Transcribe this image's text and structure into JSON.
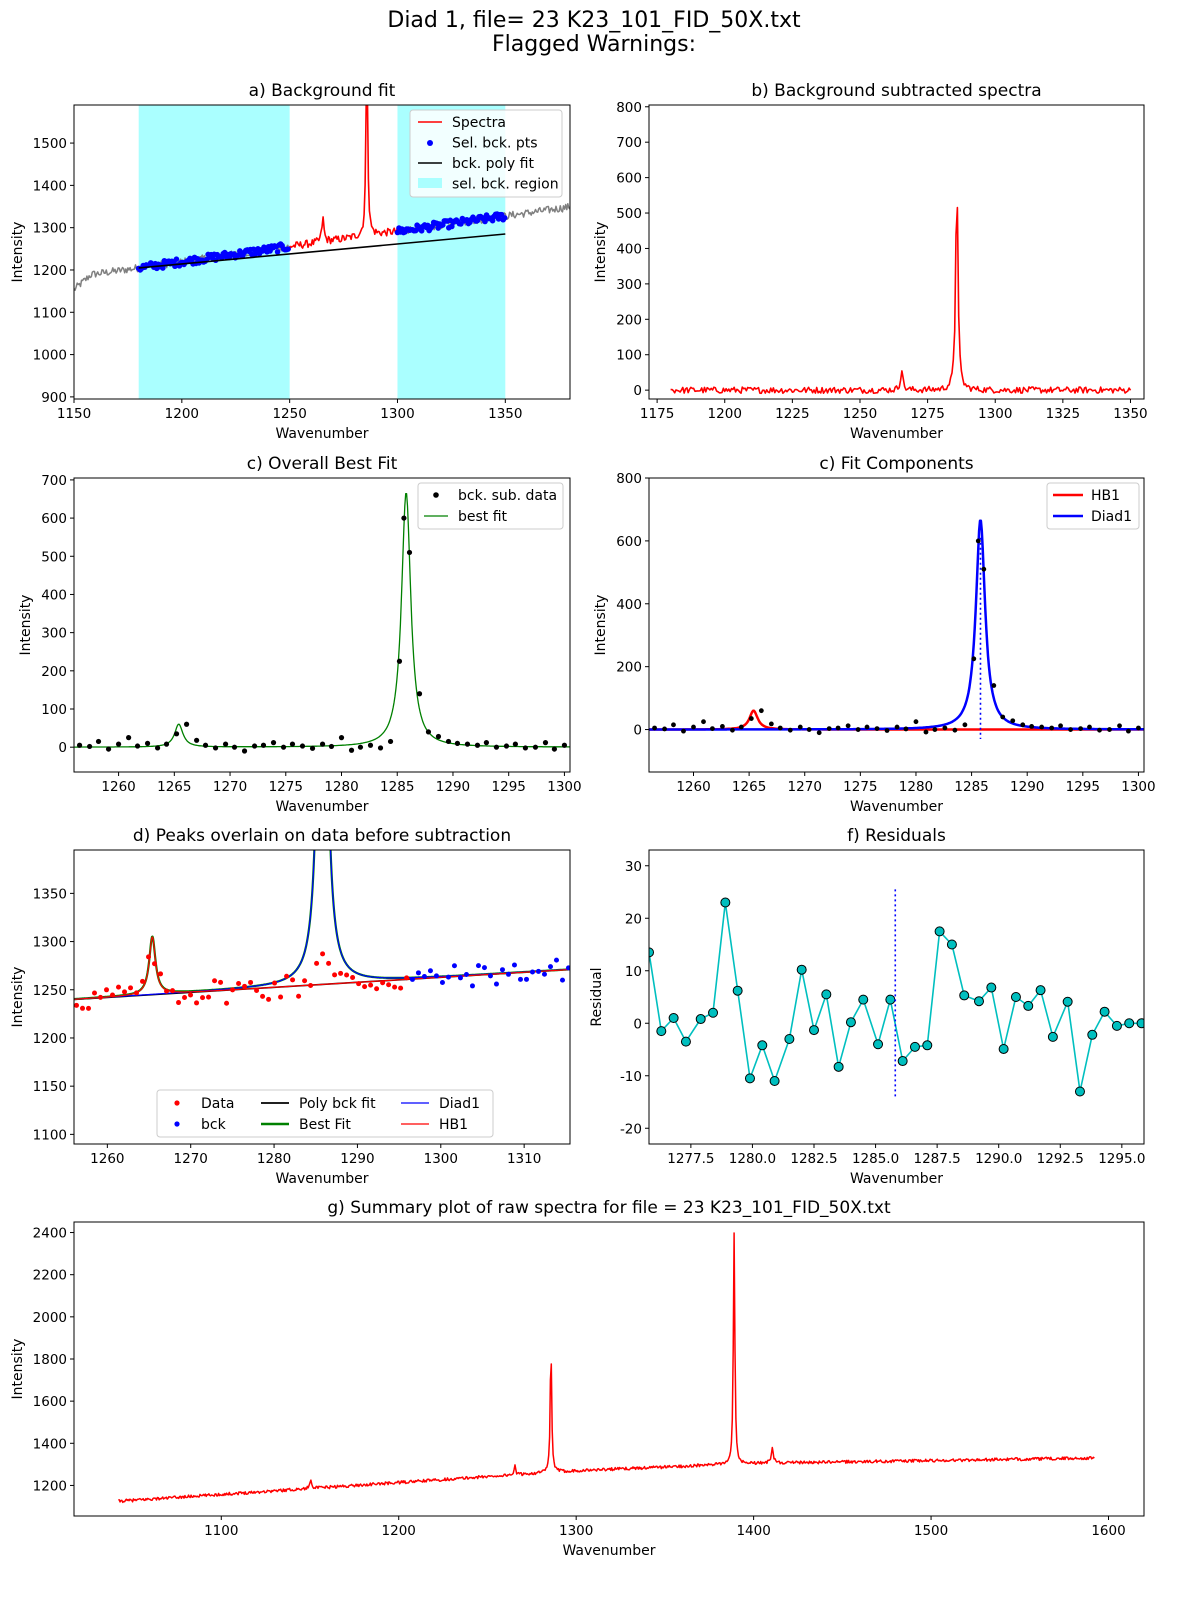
{
  "figure": {
    "title_line1": "Diad 1, file= 23 K23_101_FID_50X.txt",
    "title_line2": "Flagged Warnings:"
  },
  "colors": {
    "spectra": "#ff0000",
    "bck_pts": "#0000ff",
    "poly": "#000000",
    "region": "#aaffff",
    "best_fit": "#008000",
    "diad1": "#0000ff",
    "hb1": "#ff0000",
    "residual_line": "#00bfbf",
    "residual_marker": "#00bfbf",
    "gray_line": "#808080"
  },
  "chart_data": [
    {
      "id": "a",
      "type": "line",
      "title": "a) Background fit",
      "xlabel": "Wavenumber",
      "ylabel": "Intensity",
      "xlim": [
        1150,
        1380
      ],
      "ylim": [
        895,
        1590
      ],
      "xticks": [
        1150,
        1200,
        1250,
        1300,
        1350
      ],
      "yticks": [
        900,
        1000,
        1100,
        1200,
        1300,
        1400,
        1500
      ],
      "legend_position": "upper-right",
      "legend": [
        "Spectra",
        "Sel. bck. pts",
        "bck. poly fit",
        "sel. bck. region"
      ],
      "regions": [
        [
          1180,
          1250
        ],
        [
          1300,
          1350
        ]
      ],
      "baseline": {
        "slope": 0.72,
        "intercept": 1205,
        "x0": 1180
      },
      "poly_fit": {
        "x": [
          1180,
          1350
        ],
        "y": [
          1205,
          1285
        ]
      },
      "peaks": [
        {
          "x": 1285.8,
          "height": 420,
          "width": 0.5
        },
        {
          "x": 1265.4,
          "height": 55,
          "width": 0.6
        }
      ],
      "gray_range": [
        1150,
        1380
      ],
      "red_range": [
        1250,
        1300
      ],
      "noise": 9
    },
    {
      "id": "b",
      "type": "line",
      "title": "b) Background subtracted spectra",
      "xlabel": "Wavenumber",
      "ylabel": "Intensity",
      "xlim": [
        1172,
        1355
      ],
      "ylim": [
        -25,
        805
      ],
      "xticks": [
        1175,
        1200,
        1225,
        1250,
        1275,
        1300,
        1325,
        1350
      ],
      "yticks": [
        0,
        100,
        200,
        300,
        400,
        500,
        600,
        700,
        800
      ],
      "x_range": [
        1180,
        1350
      ],
      "peaks": [
        {
          "x": 1285.8,
          "height": 605,
          "width": 0.5
        },
        {
          "x": 1265.4,
          "height": 60,
          "width": 0.5
        }
      ],
      "noise": 9
    },
    {
      "id": "c1",
      "type": "scatter",
      "title": "c) Overall Best Fit",
      "xlabel": "Wavenumber",
      "ylabel": "Intensity",
      "xlim": [
        1256,
        1300.5
      ],
      "ylim": [
        -65,
        705
      ],
      "xticks": [
        1260,
        1265,
        1270,
        1275,
        1280,
        1285,
        1290,
        1295,
        1300
      ],
      "yticks": [
        0,
        100,
        200,
        300,
        400,
        500,
        600,
        700
      ],
      "legend_position": "upper-right",
      "legend": [
        "bck. sub. data",
        "best fit"
      ],
      "peaks": [
        {
          "x": 1285.8,
          "height": 668,
          "width": 0.5
        },
        {
          "x": 1265.4,
          "height": 60,
          "width": 0.45
        }
      ],
      "points": {
        "x": [
          1256.5,
          1257.4,
          1258.2,
          1259.1,
          1260.0,
          1260.9,
          1261.7,
          1262.6,
          1263.5,
          1264.3,
          1265.2,
          1266.1,
          1267.0,
          1267.8,
          1268.7,
          1269.6,
          1270.4,
          1271.3,
          1272.2,
          1273.0,
          1273.9,
          1274.8,
          1275.6,
          1276.5,
          1277.4,
          1278.3,
          1279.1,
          1280.0,
          1280.9,
          1281.7,
          1282.6,
          1283.5,
          1284.4,
          1285.2,
          1285.6,
          1286.1,
          1287.0,
          1287.8,
          1288.7,
          1289.6,
          1290.4,
          1291.3,
          1292.2,
          1293.0,
          1293.9,
          1294.8,
          1295.6,
          1296.5,
          1297.4,
          1298.3,
          1299.1,
          1300.0
        ],
        "y": [
          5,
          2,
          15,
          -5,
          8,
          25,
          3,
          10,
          -2,
          8,
          35,
          60,
          18,
          5,
          -2,
          8,
          0,
          -10,
          3,
          5,
          12,
          0,
          8,
          3,
          -3,
          8,
          2,
          25,
          -8,
          0,
          5,
          -2,
          15,
          225,
          600,
          510,
          140,
          40,
          28,
          15,
          10,
          8,
          5,
          12,
          0,
          3,
          8,
          -2,
          0,
          12,
          -5,
          5
        ]
      }
    },
    {
      "id": "c2",
      "type": "line",
      "title": "c) Fit Components",
      "xlabel": "Wavenumber",
      "ylabel": "Intensity",
      "xlim": [
        1256,
        1300.5
      ],
      "ylim": [
        -135,
        800
      ],
      "xticks": [
        1260,
        1265,
        1270,
        1275,
        1280,
        1285,
        1290,
        1295,
        1300
      ],
      "yticks": [
        0,
        200,
        400,
        600,
        800
      ],
      "legend_position": "upper-right",
      "legend": [
        "HB1",
        "Diad1"
      ],
      "peak_line_x": 1285.8,
      "peaks": [
        {
          "x": 1285.8,
          "height": 668,
          "width": 0.5
        },
        {
          "x": 1265.4,
          "height": 60,
          "width": 0.45
        }
      ]
    },
    {
      "id": "d",
      "type": "scatter",
      "title": "d) Peaks overlain on data before subtraction",
      "xlabel": "Wavenumber",
      "ylabel": "Intensity",
      "xlim": [
        1256,
        1315.5
      ],
      "ylim": [
        1090,
        1395
      ],
      "xticks": [
        1260,
        1270,
        1280,
        1290,
        1300,
        1310
      ],
      "yticks": [
        1100,
        1150,
        1200,
        1250,
        1300,
        1350
      ],
      "legend_position": "lower-center",
      "legend": [
        "Data",
        "bck",
        "Poly bck fit",
        "Best Fit",
        "Diad1",
        "HB1"
      ],
      "baseline": {
        "x": [
          1256,
          1315.5
        ],
        "y": [
          1240,
          1271
        ]
      },
      "peaks": [
        {
          "x": 1285.8,
          "height": 668,
          "width": 0.5
        },
        {
          "x": 1265.4,
          "height": 60,
          "width": 0.45
        }
      ]
    },
    {
      "id": "f",
      "type": "line",
      "title": "f) Residuals",
      "xlabel": "Wavenumber",
      "ylabel": "Residual",
      "xlim": [
        1275.8,
        1295.9
      ],
      "ylim": [
        -23,
        33
      ],
      "xticks": [
        1277.5,
        1280.0,
        1282.5,
        1285.0,
        1287.5,
        1290.0,
        1292.5,
        1295.0
      ],
      "xtick_labels": [
        "1277.5",
        "1280.0",
        "1282.5",
        "1285.0",
        "1287.5",
        "1290.0",
        "1292.5",
        "1295.0"
      ],
      "yticks": [
        -20,
        -10,
        0,
        10,
        20,
        30
      ],
      "peak_line_x": 1285.8,
      "points": {
        "x": [
          1275.8,
          1276.3,
          1276.8,
          1277.3,
          1277.9,
          1278.4,
          1278.9,
          1279.4,
          1279.9,
          1280.4,
          1280.9,
          1281.5,
          1282.0,
          1282.5,
          1283.0,
          1283.5,
          1284.0,
          1284.5,
          1285.1,
          1285.6,
          1286.1,
          1286.6,
          1287.1,
          1287.6,
          1288.1,
          1288.6,
          1289.2,
          1289.7,
          1290.2,
          1290.7,
          1291.2,
          1291.7,
          1292.2,
          1292.8,
          1293.3,
          1293.8,
          1294.3,
          1294.8,
          1295.3,
          1295.8
        ],
        "y": [
          13.5,
          -1.5,
          1,
          -3.5,
          0.8,
          2,
          23,
          6.2,
          -10.5,
          -4.2,
          -11,
          -3,
          10.2,
          -1.3,
          5.5,
          -8.3,
          0.2,
          4.5,
          -4,
          4.5,
          -7.2,
          -4.5,
          -4.2,
          17.5,
          15,
          5.3,
          4.2,
          6.8,
          -4.9,
          5,
          3.3,
          6.3,
          -2.6,
          4.1,
          -13,
          -2.2,
          2.2,
          -0.5,
          0,
          0
        ]
      }
    },
    {
      "id": "g",
      "type": "line",
      "title": "g) Summary plot of raw spectra for file = 23 K23_101_FID_50X.txt",
      "xlabel": "Wavenumber",
      "ylabel": "Intensity",
      "xlim": [
        1017,
        1620
      ],
      "ylim": [
        1055,
        2450
      ],
      "xticks": [
        1100,
        1200,
        1300,
        1400,
        1500,
        1600
      ],
      "yticks": [
        1200,
        1400,
        1600,
        1800,
        2000,
        2200,
        2400
      ],
      "x_range": [
        1042,
        1592
      ],
      "baseline": {
        "points_x": [
          1042,
          1300,
          1400,
          1592
        ],
        "points_y": [
          1125,
          1270,
          1305,
          1330
        ]
      },
      "peaks": [
        {
          "x": 1285.8,
          "height": 595,
          "width": 0.5
        },
        {
          "x": 1389.0,
          "height": 1090,
          "width": 0.5
        },
        {
          "x": 1410.5,
          "height": 75,
          "width": 0.7
        },
        {
          "x": 1150.5,
          "height": 45,
          "width": 0.6
        },
        {
          "x": 1265.4,
          "height": 45,
          "width": 0.5
        }
      ],
      "noise": 7
    }
  ]
}
